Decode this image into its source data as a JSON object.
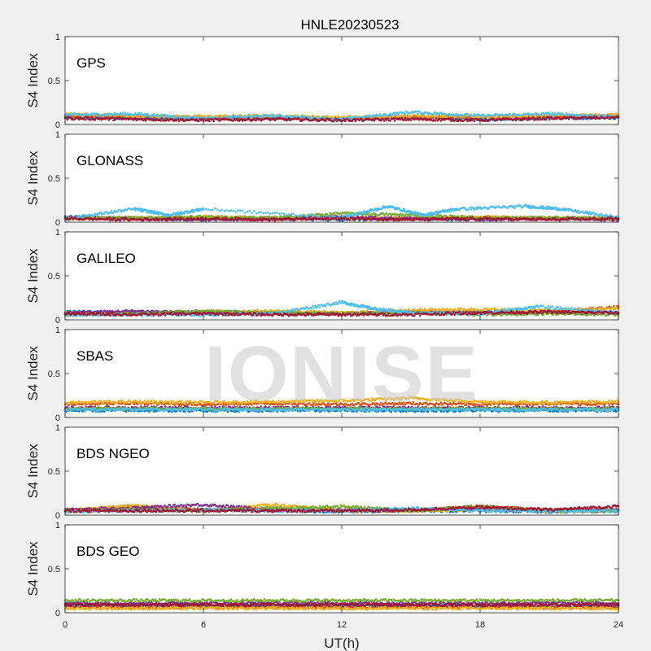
{
  "figure": {
    "title": "HNLE20230523",
    "xlabel": "UT(h)",
    "ylabel": "S4 Index",
    "watermark": "IONISE"
  },
  "chart_data": {
    "type": "scatter",
    "title": "HNLE20230523",
    "xlabel": "UT(h)",
    "ylabel": "S4 Index",
    "xlim": [
      0,
      24
    ],
    "ylim": [
      0,
      1
    ],
    "xticks": [
      0,
      6,
      12,
      18,
      24
    ],
    "yticks": [
      0,
      0.5,
      1
    ],
    "grid": false,
    "colors": [
      "#0072BD",
      "#D95319",
      "#EDB120",
      "#7E2F8E",
      "#77AC30",
      "#4DBEEE",
      "#A2142F"
    ],
    "panels": [
      {
        "name": "GPS",
        "series": [
          {
            "color": "#0072BD",
            "x": [
              0,
              3,
              6,
              9,
              12,
              15,
              18,
              21,
              24
            ],
            "y": [
              0.08,
              0.07,
              0.06,
              0.07,
              0.06,
              0.08,
              0.06,
              0.07,
              0.08
            ]
          },
          {
            "color": "#D95319",
            "x": [
              0,
              3,
              6,
              9,
              12,
              15,
              18,
              21,
              24
            ],
            "y": [
              0.1,
              0.09,
              0.08,
              0.09,
              0.07,
              0.09,
              0.08,
              0.09,
              0.1
            ]
          },
          {
            "color": "#EDB120",
            "x": [
              0,
              3,
              6,
              9,
              12,
              15,
              18,
              21,
              24
            ],
            "y": [
              0.12,
              0.1,
              0.09,
              0.1,
              0.08,
              0.1,
              0.09,
              0.1,
              0.11
            ]
          },
          {
            "color": "#4DBEEE",
            "x": [
              0,
              3,
              6,
              9,
              12,
              15,
              18,
              21,
              24
            ],
            "y": [
              0.11,
              0.12,
              0.07,
              0.1,
              0.06,
              0.14,
              0.1,
              0.12,
              0.09
            ]
          },
          {
            "color": "#A2142F",
            "x": [
              0,
              3,
              6,
              9,
              12,
              15,
              18,
              21,
              24
            ],
            "y": [
              0.07,
              0.06,
              0.05,
              0.06,
              0.05,
              0.06,
              0.05,
              0.07,
              0.08
            ]
          }
        ]
      },
      {
        "name": "GLONASS",
        "series": [
          {
            "color": "#0072BD",
            "x": [
              0,
              3,
              6,
              9,
              12,
              15,
              18,
              21,
              24
            ],
            "y": [
              0.06,
              0.04,
              0.03,
              0.04,
              0.03,
              0.04,
              0.03,
              0.05,
              0.04
            ]
          },
          {
            "color": "#D95319",
            "x": [
              0,
              3,
              6,
              9,
              12,
              15,
              18,
              21,
              24
            ],
            "y": [
              0.05,
              0.04,
              0.05,
              0.04,
              0.05,
              0.04,
              0.05,
              0.04,
              0.05
            ]
          },
          {
            "color": "#EDB120",
            "x": [
              0,
              3,
              6,
              9,
              12,
              15,
              18,
              21,
              24
            ],
            "y": [
              0.04,
              0.05,
              0.06,
              0.05,
              0.05,
              0.04,
              0.06,
              0.05,
              0.04
            ]
          },
          {
            "color": "#7E2F8E",
            "x": [
              0,
              3,
              6,
              9,
              12,
              15,
              18,
              21,
              24
            ],
            "y": [
              0.05,
              0.04,
              0.03,
              0.04,
              0.06,
              0.04,
              0.03,
              0.04,
              0.03
            ]
          },
          {
            "color": "#77AC30",
            "x": [
              0,
              3,
              6,
              9,
              12,
              15,
              18,
              21,
              24
            ],
            "y": [
              0.04,
              0.05,
              0.06,
              0.05,
              0.1,
              0.08,
              0.05,
              0.05,
              0.04
            ]
          },
          {
            "color": "#4DBEEE",
            "x": [
              0,
              3,
              4.5,
              6,
              12,
              14,
              15.5,
              17,
              20,
              21.5,
              24
            ],
            "y": [
              0.04,
              0.15,
              0.08,
              0.15,
              0.05,
              0.18,
              0.08,
              0.15,
              0.18,
              0.15,
              0.05
            ]
          },
          {
            "color": "#A2142F",
            "x": [
              0,
              3,
              6,
              9,
              12,
              15,
              18,
              21,
              24
            ],
            "y": [
              0.04,
              0.03,
              0.04,
              0.03,
              0.04,
              0.03,
              0.04,
              0.03,
              0.04
            ]
          }
        ]
      },
      {
        "name": "GALILEO",
        "series": [
          {
            "color": "#0072BD",
            "x": [
              0,
              3,
              6,
              9,
              12,
              15,
              18,
              21,
              24
            ],
            "y": [
              0.09,
              0.08,
              0.09,
              0.08,
              0.07,
              0.08,
              0.09,
              0.1,
              0.08
            ]
          },
          {
            "color": "#D95319",
            "x": [
              0,
              3,
              6,
              9,
              12,
              15,
              18,
              21,
              24
            ],
            "y": [
              0.07,
              0.08,
              0.07,
              0.09,
              0.07,
              0.1,
              0.08,
              0.09,
              0.15
            ]
          },
          {
            "color": "#EDB120",
            "x": [
              0,
              3,
              6,
              9,
              12,
              15,
              18,
              21,
              24
            ],
            "y": [
              0.08,
              0.07,
              0.09,
              0.1,
              0.08,
              0.11,
              0.12,
              0.1,
              0.13
            ]
          },
          {
            "color": "#7E2F8E",
            "x": [
              0,
              3,
              6,
              9,
              12,
              15,
              18,
              21,
              24
            ],
            "y": [
              0.08,
              0.1,
              0.08,
              0.07,
              0.07,
              0.08,
              0.07,
              0.08,
              0.07
            ]
          },
          {
            "color": "#77AC30",
            "x": [
              0,
              3,
              6,
              9,
              12,
              15,
              18,
              21,
              24
            ],
            "y": [
              0.06,
              0.07,
              0.1,
              0.08,
              0.07,
              0.08,
              0.06,
              0.07,
              0.06
            ]
          },
          {
            "color": "#4DBEEE",
            "x": [
              0,
              3,
              6,
              9,
              12,
              13.5,
              15,
              18,
              20.5,
              24
            ],
            "y": [
              0.06,
              0.06,
              0.06,
              0.07,
              0.2,
              0.12,
              0.08,
              0.07,
              0.15,
              0.08
            ]
          },
          {
            "color": "#A2142F",
            "x": [
              0,
              3,
              6,
              9,
              12,
              15,
              18,
              21,
              24
            ],
            "y": [
              0.07,
              0.06,
              0.07,
              0.06,
              0.06,
              0.06,
              0.08,
              0.09,
              0.08
            ]
          }
        ]
      },
      {
        "name": "SBAS",
        "series": [
          {
            "color": "#0072BD",
            "x": [
              0,
              3,
              6,
              9,
              12,
              15,
              18,
              21,
              24
            ],
            "y": [
              0.08,
              0.08,
              0.08,
              0.08,
              0.08,
              0.08,
              0.08,
              0.08,
              0.08
            ]
          },
          {
            "color": "#D95319",
            "x": [
              0,
              3,
              6,
              9,
              12,
              15,
              18,
              21,
              24
            ],
            "y": [
              0.15,
              0.16,
              0.15,
              0.16,
              0.15,
              0.16,
              0.15,
              0.16,
              0.15
            ]
          },
          {
            "color": "#EDB120",
            "x": [
              0,
              3,
              6,
              9,
              12,
              15,
              18,
              21,
              24
            ],
            "y": [
              0.17,
              0.18,
              0.17,
              0.18,
              0.19,
              0.22,
              0.18,
              0.17,
              0.18
            ]
          },
          {
            "color": "#7E2F8E",
            "x": [
              0,
              3,
              6,
              9,
              12,
              15,
              18,
              21,
              24
            ],
            "y": [
              0.11,
              0.11,
              0.11,
              0.11,
              0.11,
              0.11,
              0.11,
              0.11,
              0.11
            ]
          },
          {
            "color": "#77AC30",
            "x": [
              0,
              3,
              6,
              9,
              12,
              15,
              18,
              21,
              24
            ],
            "y": [
              0.1,
              0.1,
              0.1,
              0.1,
              0.1,
              0.1,
              0.1,
              0.1,
              0.1
            ]
          },
          {
            "color": "#4DBEEE",
            "x": [
              0,
              3,
              6,
              9,
              12,
              15,
              18,
              21,
              24
            ],
            "y": [
              0.09,
              0.09,
              0.09,
              0.09,
              0.09,
              0.09,
              0.09,
              0.09,
              0.09
            ]
          }
        ]
      },
      {
        "name": "BDS NGEO",
        "series": [
          {
            "color": "#0072BD",
            "x": [
              0,
              3,
              6,
              9,
              12,
              15,
              18,
              21,
              24
            ],
            "y": [
              0.05,
              0.1,
              0.06,
              0.05,
              0.04,
              0.05,
              0.05,
              0.04,
              0.05
            ]
          },
          {
            "color": "#D95319",
            "x": [
              0,
              3,
              6,
              9,
              12,
              15,
              18,
              21,
              24
            ],
            "y": [
              0.06,
              0.09,
              0.06,
              0.07,
              0.06,
              0.05,
              0.1,
              0.06,
              0.05
            ]
          },
          {
            "color": "#EDB120",
            "x": [
              0,
              3,
              6,
              9,
              12,
              15,
              18,
              21,
              24
            ],
            "y": [
              0.05,
              0.11,
              0.05,
              0.12,
              0.05,
              0.05,
              0.06,
              0.05,
              0.06
            ]
          },
          {
            "color": "#7E2F8E",
            "x": [
              0,
              3,
              6,
              9,
              12,
              15,
              18,
              21,
              24
            ],
            "y": [
              0.06,
              0.08,
              0.12,
              0.06,
              0.05,
              0.06,
              0.07,
              0.05,
              0.06
            ]
          },
          {
            "color": "#77AC30",
            "x": [
              0,
              3,
              6,
              9,
              12,
              15,
              18,
              21,
              24
            ],
            "y": [
              0.05,
              0.06,
              0.05,
              0.08,
              0.1,
              0.05,
              0.1,
              0.05,
              0.05
            ]
          },
          {
            "color": "#4DBEEE",
            "x": [
              0,
              3,
              6,
              9,
              12,
              15,
              18,
              21,
              24
            ],
            "y": [
              0.04,
              0.05,
              0.06,
              0.05,
              0.05,
              0.08,
              0.05,
              0.05,
              0.05
            ]
          },
          {
            "color": "#A2142F",
            "x": [
              0,
              3,
              6,
              9,
              12,
              15,
              18,
              21,
              24
            ],
            "y": [
              0.05,
              0.05,
              0.05,
              0.05,
              0.05,
              0.06,
              0.09,
              0.06,
              0.1
            ]
          }
        ]
      },
      {
        "name": "BDS GEO",
        "series": [
          {
            "color": "#0072BD",
            "x": [
              0,
              3,
              6,
              9,
              12,
              15,
              18,
              21,
              24
            ],
            "y": [
              0.08,
              0.08,
              0.08,
              0.08,
              0.08,
              0.08,
              0.08,
              0.08,
              0.08
            ]
          },
          {
            "color": "#D95319",
            "x": [
              0,
              3,
              6,
              9,
              12,
              15,
              18,
              21,
              24
            ],
            "y": [
              0.06,
              0.06,
              0.06,
              0.06,
              0.06,
              0.06,
              0.06,
              0.06,
              0.06
            ]
          },
          {
            "color": "#EDB120",
            "x": [
              0,
              3,
              6,
              9,
              12,
              15,
              18,
              21,
              24
            ],
            "y": [
              0.05,
              0.05,
              0.05,
              0.05,
              0.05,
              0.05,
              0.05,
              0.05,
              0.05
            ]
          },
          {
            "color": "#7E2F8E",
            "x": [
              0,
              3,
              6,
              9,
              12,
              15,
              18,
              21,
              24
            ],
            "y": [
              0.11,
              0.11,
              0.11,
              0.11,
              0.11,
              0.11,
              0.11,
              0.11,
              0.11
            ]
          },
          {
            "color": "#77AC30",
            "x": [
              0,
              3,
              6,
              9,
              12,
              15,
              18,
              21,
              24
            ],
            "y": [
              0.14,
              0.14,
              0.14,
              0.14,
              0.14,
              0.14,
              0.14,
              0.14,
              0.14
            ]
          },
          {
            "color": "#A2142F",
            "x": [
              0,
              3,
              6,
              9,
              12,
              15,
              18,
              21,
              24
            ],
            "y": [
              0.09,
              0.09,
              0.09,
              0.09,
              0.09,
              0.09,
              0.09,
              0.09,
              0.09
            ]
          }
        ]
      }
    ]
  }
}
